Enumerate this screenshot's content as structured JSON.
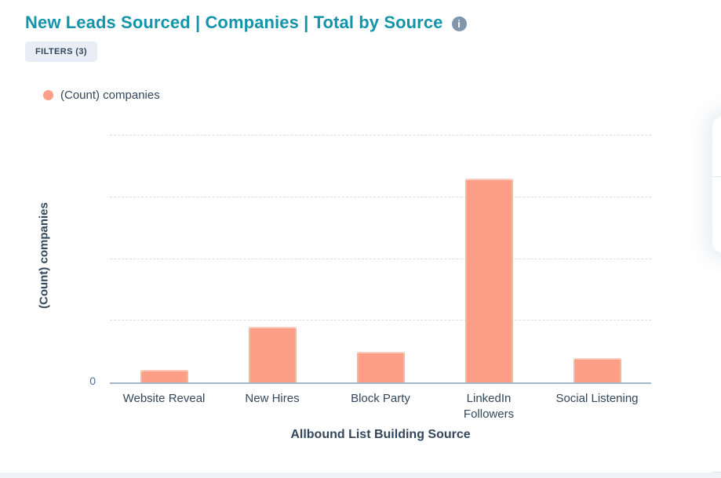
{
  "header": {
    "title": "New Leads Sourced | Companies | Total by Source",
    "filters_label": "FILTERS (3)"
  },
  "legend": {
    "position": "top-left",
    "items": [
      {
        "label": "(Count) companies",
        "color": "#fd9f87"
      }
    ]
  },
  "chart_data": {
    "type": "bar",
    "title": "New Leads Sourced | Companies | Total by Source",
    "series_name": "(Count) companies",
    "categories": [
      "Website Reveal",
      "New Hires",
      "Block Party",
      "LinkedIn Followers",
      "Social Listening"
    ],
    "category_label_lines": [
      [
        "Website Reveal"
      ],
      [
        "New Hires"
      ],
      [
        "Block Party"
      ],
      [
        "LinkedIn",
        "Followers"
      ],
      [
        "Social Listening"
      ]
    ],
    "values": [
      2,
      9,
      5,
      33,
      4
    ],
    "values_note": "gridlines are unlabeled; counts estimated from gridline spacing (only the 0 tick is labeled)",
    "xlabel": "Allbound List Building Source",
    "ylabel": "(Count) companies",
    "ylim": [
      0,
      40
    ],
    "gridline_step": 10,
    "y_tick_labels_visible": [
      "0"
    ],
    "grid": "dashed-horizontal",
    "bar_color": "#fd9f87",
    "legend_position": "top-left"
  },
  "colors": {
    "title_accent": "#1494aa",
    "text_dark": "#33475b",
    "tick_text": "#516f90",
    "bar": "#fd9f87",
    "badge_bg": "#e9edf5",
    "axis_line": "#a4b7cb",
    "gridline": "#d9dde6",
    "info_icon_bg": "#8096ab",
    "card_edge_strip": "#f1f3f6"
  }
}
